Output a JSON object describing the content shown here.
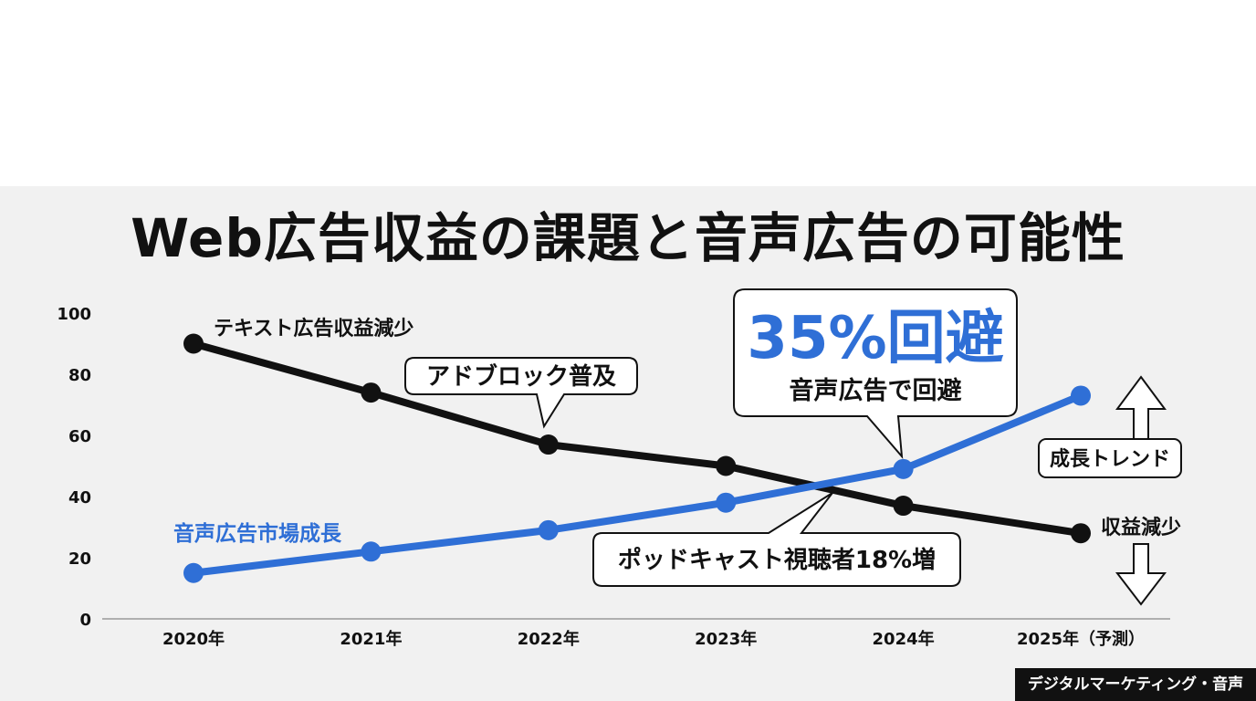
{
  "title": "Web広告収益の課題と音声広告の可能性",
  "footer_label": "デジタルマーケティング・音声",
  "colors": {
    "accent": "#2f6fd6",
    "ink": "#111111",
    "panel": "#f1f1f1"
  },
  "chart_data": {
    "type": "line",
    "x": [
      "2020年",
      "2021年",
      "2022年",
      "2023年",
      "2024年",
      "2025年（予測）"
    ],
    "ylim": [
      0,
      100
    ],
    "yticks": [
      "0",
      "20",
      "40",
      "60",
      "80",
      "100"
    ],
    "grid": false,
    "series": [
      {
        "values": [
          90,
          74,
          57,
          50,
          37,
          28
        ],
        "color": "#111111"
      },
      {
        "values": [
          15,
          22,
          29,
          38,
          49,
          73
        ],
        "color": "#2f6fd6"
      }
    ],
    "annotations": {
      "text_ad_decline": "テキスト広告収益減少",
      "adblock": "アドブロック普及",
      "avoid_pct": "35%回避",
      "avoid_sub": "音声広告で回避",
      "growth_trend": "成長トレンド",
      "revenue_decline": "収益減少",
      "audio_market_growth": "音声広告市場成長",
      "podcast": "ポッドキャスト視聴者18%増"
    }
  }
}
